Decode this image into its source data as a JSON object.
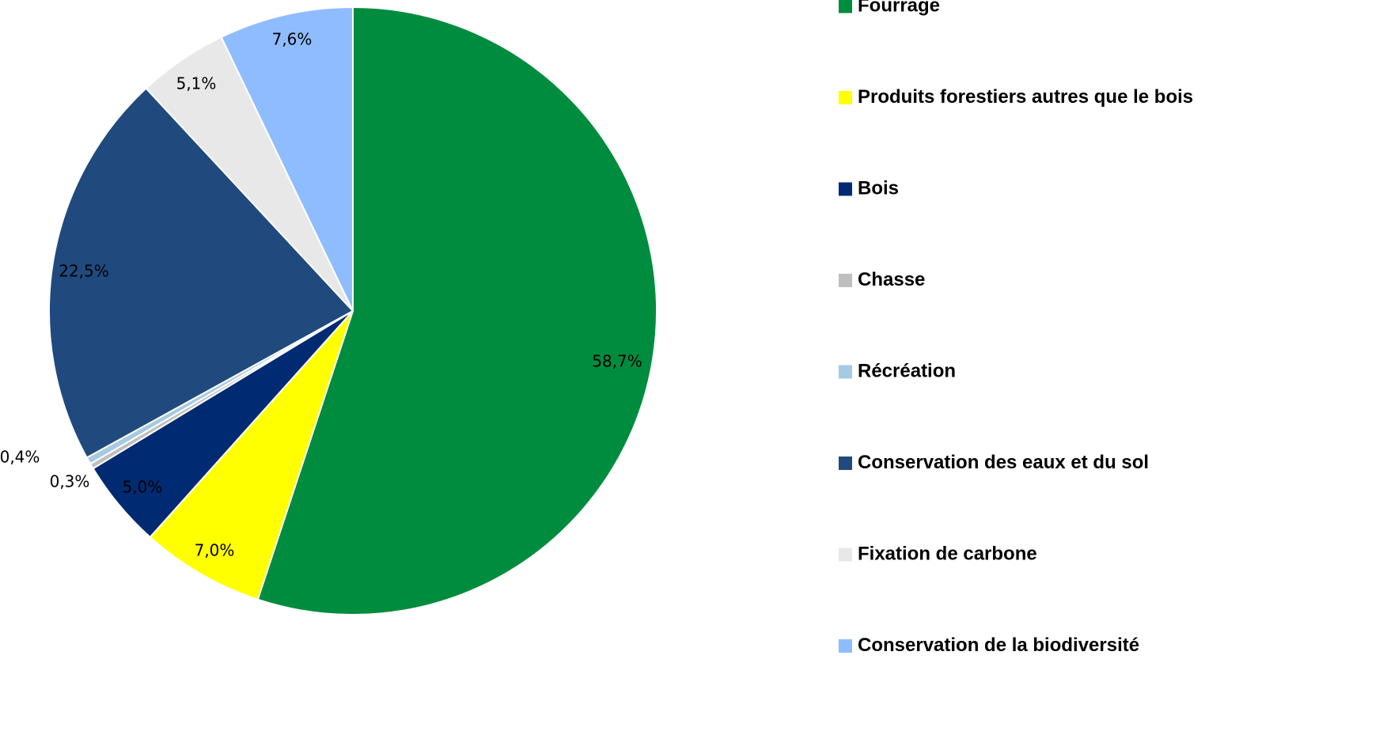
{
  "chart_data": {
    "type": "pie",
    "labels": [
      "Fourrage",
      "Produits forestiers autres que le bois",
      "Bois",
      "Chasse",
      "Récréation",
      "Conservation des eaux et du sol",
      "Fixation de carbone",
      "Conservation de la biodiversité"
    ],
    "values": [
      58.7,
      7.0,
      5.0,
      0.3,
      0.4,
      22.5,
      5.1,
      7.6
    ],
    "data_labels": [
      "58,7%",
      "7,0%",
      "5,0%",
      "0,3%",
      "0,4%",
      "22,5%",
      "5,1%",
      "7,6%"
    ],
    "colors": [
      "#008C3E",
      "#FFFF00",
      "#002B72",
      "#BFBFBF",
      "#A6CAE4",
      "#204A7E",
      "#E8E8E8",
      "#8FBCFF"
    ],
    "start_angle": "12 o'clock",
    "direction": "clockwise",
    "legend": "right"
  }
}
